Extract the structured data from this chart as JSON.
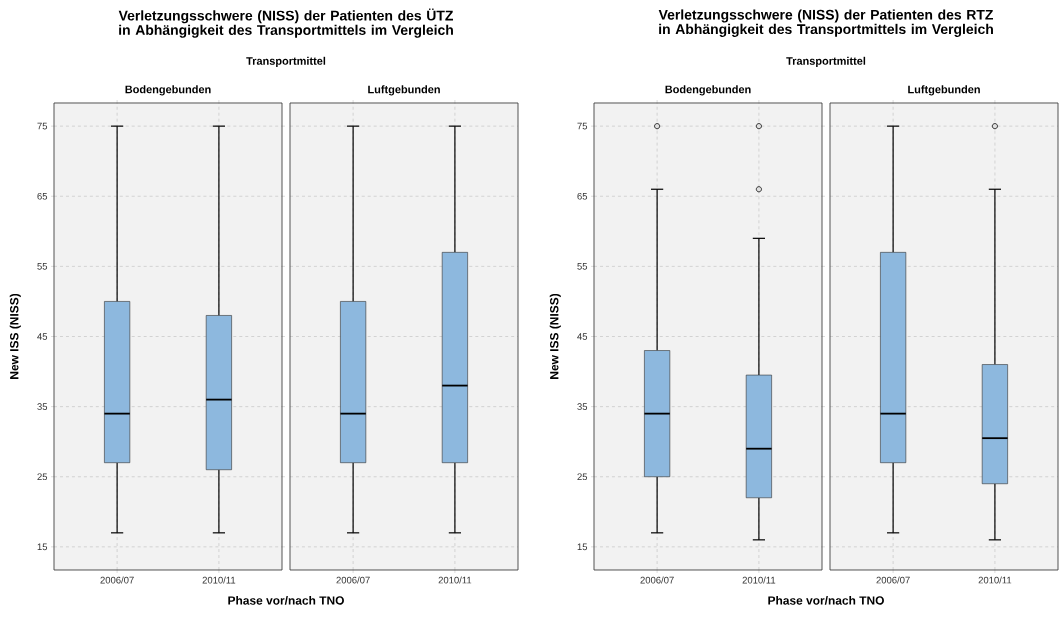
{
  "chart_data": [
    {
      "type": "box",
      "title": "Bodengebunden",
      "annotations": [
        "Verletzungsschwere (NISS) der Patienten des ÜTZ in Abhängigkeit des Transportmittels im Vergleich",
        "Transportmittel"
      ],
      "xlabel": "Phase vor/nach TNO",
      "ylabel": "New ISS (NISS)",
      "categories": [
        "2006/07",
        "2010/11"
      ],
      "ylim": [
        11.7,
        78.3
      ],
      "yticks": [
        15,
        25,
        35,
        45,
        55,
        65,
        75
      ],
      "grid": true,
      "series": [
        {
          "color": "#8db8de",
          "boxes": [
            {
              "low": 17,
              "q1": 27,
              "median": 34,
              "q3": 50,
              "high": 75
            },
            {
              "low": 17,
              "q1": 26,
              "median": 36,
              "q3": 48,
              "high": 75
            }
          ]
        }
      ]
    },
    {
      "type": "box",
      "title": "Luftgebunden",
      "categories": [
        "2006/07",
        "2010/11"
      ],
      "ylim": [
        11.7,
        78.3
      ],
      "yticks": [
        15,
        25,
        35,
        45,
        55,
        65,
        75
      ],
      "grid": true,
      "tick_labels": "x",
      "series": [
        {
          "color": "#8db8de",
          "boxes": [
            {
              "low": 17,
              "q1": 27,
              "median": 34,
              "q3": 50,
              "high": 75
            },
            {
              "low": 17,
              "q1": 27,
              "median": 38,
              "q3": 57,
              "high": 75
            }
          ]
        }
      ]
    },
    {
      "type": "box",
      "title": "Bodengebunden",
      "annotations": [
        "Verletzungsschwere (NISS) der Patienten des RTZ in Abhängigkeit des Transportmittels im Vergleich",
        "Transportmittel"
      ],
      "xlabel": "Phase vor/nach TNO",
      "ylabel": "New ISS (NISS)",
      "categories": [
        "2006/07",
        "2010/11"
      ],
      "ylim": [
        11.7,
        78.3
      ],
      "yticks": [
        15,
        25,
        35,
        45,
        55,
        65,
        75
      ],
      "grid": true,
      "series": [
        {
          "color": "#8db8de",
          "boxes": [
            {
              "low": 17,
              "q1": 25,
              "median": 34,
              "q3": 43,
              "high": 66,
              "outliers": [
                75
              ]
            },
            {
              "low": 16,
              "q1": 22,
              "median": 29,
              "q3": 39.5,
              "high": 59,
              "outliers": [
                75,
                66
              ]
            }
          ]
        }
      ]
    },
    {
      "type": "box",
      "title": "Luftgebunden",
      "categories": [
        "2006/07",
        "2010/11"
      ],
      "ylim": [
        11.7,
        78.3
      ],
      "yticks": [
        15,
        25,
        35,
        45,
        55,
        65,
        75
      ],
      "grid": true,
      "tick_labels": "x",
      "series": [
        {
          "color": "#8db8de",
          "boxes": [
            {
              "low": 17,
              "q1": 27,
              "median": 34,
              "q3": 57,
              "high": 75
            },
            {
              "low": 16,
              "q1": 24,
              "median": 30.5,
              "q3": 41,
              "high": 66,
              "outliers": [
                75
              ]
            }
          ]
        }
      ]
    }
  ]
}
